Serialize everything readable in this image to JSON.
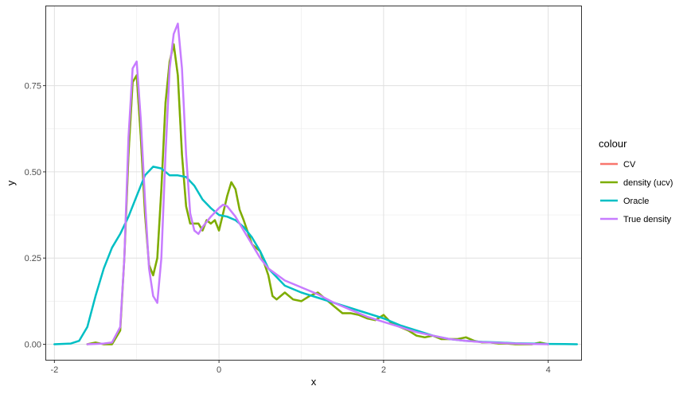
{
  "chart_data": {
    "type": "line",
    "xlabel": "x",
    "ylabel": "y",
    "xlim": [
      -2.1,
      4.4
    ],
    "ylim": [
      -0.045,
      0.98
    ],
    "x_ticks": [
      -2,
      0,
      2,
      4
    ],
    "x_tick_labels": [
      "-2",
      "0",
      "2",
      "4"
    ],
    "y_ticks": [
      0.0,
      0.25,
      0.5,
      0.75
    ],
    "y_tick_labels": [
      "0.00",
      "0.25",
      "0.50",
      "0.75"
    ],
    "grid": true,
    "legend": {
      "title": "colour",
      "placement": "right",
      "entries": [
        {
          "label": "CV",
          "color": "#F8766D"
        },
        {
          "label": "density (ucv)",
          "color": "#7CAE00"
        },
        {
          "label": "Oracle",
          "color": "#00BFC4"
        },
        {
          "label": "True density",
          "color": "#C77CFF"
        }
      ]
    },
    "series": [
      {
        "name": "CV",
        "color": "#F8766D",
        "x": [
          -1.6,
          -1.5,
          -1.4,
          -1.3,
          -1.2,
          -1.15,
          -1.1,
          -1.05,
          -1.0,
          -0.95,
          -0.9,
          -0.85,
          -0.8,
          -0.75,
          -0.7,
          -0.65,
          -0.6,
          -0.55,
          -0.5,
          -0.45,
          -0.4,
          -0.35,
          -0.3,
          -0.25,
          -0.2,
          -0.15,
          -0.1,
          -0.05,
          0.0,
          0.05,
          0.1,
          0.15,
          0.2,
          0.25,
          0.3,
          0.4,
          0.5,
          0.6,
          0.65,
          0.7,
          0.8,
          0.9,
          1.0,
          1.1,
          1.2,
          1.3,
          1.4,
          1.5,
          1.6,
          1.7,
          1.8,
          1.9,
          2.0,
          2.1,
          2.2,
          2.3,
          2.4,
          2.5,
          2.6,
          2.7,
          2.8,
          2.9,
          3.0,
          3.1,
          3.2,
          3.3,
          3.4,
          3.5,
          3.6,
          3.7,
          3.8,
          3.9,
          4.0
        ],
        "values": [
          0.0,
          0.005,
          0.0,
          0.0,
          0.04,
          0.25,
          0.55,
          0.76,
          0.78,
          0.6,
          0.38,
          0.23,
          0.2,
          0.25,
          0.45,
          0.7,
          0.82,
          0.87,
          0.78,
          0.55,
          0.4,
          0.35,
          0.35,
          0.35,
          0.33,
          0.36,
          0.35,
          0.36,
          0.33,
          0.38,
          0.43,
          0.47,
          0.45,
          0.39,
          0.36,
          0.29,
          0.27,
          0.2,
          0.14,
          0.13,
          0.15,
          0.13,
          0.125,
          0.14,
          0.15,
          0.13,
          0.11,
          0.09,
          0.09,
          0.085,
          0.075,
          0.07,
          0.085,
          0.06,
          0.05,
          0.04,
          0.025,
          0.02,
          0.025,
          0.015,
          0.015,
          0.015,
          0.02,
          0.01,
          0.005,
          0.005,
          0.002,
          0.002,
          0.0,
          0.0,
          0.0,
          0.005,
          0.0
        ]
      },
      {
        "name": "density (ucv)",
        "color": "#7CAE00",
        "x": [
          -1.6,
          -1.5,
          -1.4,
          -1.3,
          -1.2,
          -1.15,
          -1.1,
          -1.05,
          -1.0,
          -0.95,
          -0.9,
          -0.85,
          -0.8,
          -0.75,
          -0.7,
          -0.65,
          -0.6,
          -0.55,
          -0.5,
          -0.45,
          -0.4,
          -0.35,
          -0.3,
          -0.25,
          -0.2,
          -0.15,
          -0.1,
          -0.05,
          0.0,
          0.05,
          0.1,
          0.15,
          0.2,
          0.25,
          0.3,
          0.4,
          0.5,
          0.6,
          0.65,
          0.7,
          0.8,
          0.9,
          1.0,
          1.1,
          1.2,
          1.3,
          1.4,
          1.5,
          1.6,
          1.7,
          1.8,
          1.9,
          2.0,
          2.1,
          2.2,
          2.3,
          2.4,
          2.5,
          2.6,
          2.7,
          2.8,
          2.9,
          3.0,
          3.1,
          3.2,
          3.3,
          3.4,
          3.5,
          3.6,
          3.7,
          3.8,
          3.9,
          4.0
        ],
        "values": [
          0.0,
          0.005,
          0.0,
          0.0,
          0.04,
          0.25,
          0.55,
          0.76,
          0.78,
          0.6,
          0.38,
          0.23,
          0.2,
          0.25,
          0.45,
          0.7,
          0.82,
          0.87,
          0.78,
          0.55,
          0.4,
          0.35,
          0.35,
          0.35,
          0.33,
          0.36,
          0.35,
          0.36,
          0.33,
          0.38,
          0.43,
          0.47,
          0.45,
          0.39,
          0.36,
          0.29,
          0.27,
          0.2,
          0.14,
          0.13,
          0.15,
          0.13,
          0.125,
          0.14,
          0.15,
          0.13,
          0.11,
          0.09,
          0.09,
          0.085,
          0.075,
          0.07,
          0.085,
          0.06,
          0.05,
          0.04,
          0.025,
          0.02,
          0.025,
          0.015,
          0.015,
          0.015,
          0.02,
          0.01,
          0.005,
          0.005,
          0.002,
          0.002,
          0.0,
          0.0,
          0.0,
          0.005,
          0.0
        ]
      },
      {
        "name": "Oracle",
        "color": "#00BFC4",
        "x": [
          -2.0,
          -1.8,
          -1.7,
          -1.6,
          -1.5,
          -1.4,
          -1.3,
          -1.2,
          -1.1,
          -1.0,
          -0.9,
          -0.8,
          -0.7,
          -0.6,
          -0.5,
          -0.4,
          -0.3,
          -0.2,
          -0.1,
          0.0,
          0.1,
          0.2,
          0.3,
          0.4,
          0.5,
          0.6,
          0.8,
          1.0,
          1.2,
          1.4,
          1.6,
          1.8,
          2.0,
          2.2,
          2.4,
          2.6,
          2.8,
          3.0,
          3.2,
          3.4,
          3.6,
          3.8,
          4.0,
          4.2,
          4.35
        ],
        "values": [
          0.0,
          0.002,
          0.01,
          0.05,
          0.14,
          0.22,
          0.28,
          0.32,
          0.37,
          0.43,
          0.49,
          0.515,
          0.51,
          0.49,
          0.49,
          0.485,
          0.46,
          0.42,
          0.395,
          0.375,
          0.37,
          0.36,
          0.34,
          0.31,
          0.27,
          0.22,
          0.17,
          0.15,
          0.135,
          0.12,
          0.105,
          0.09,
          0.075,
          0.055,
          0.04,
          0.025,
          0.015,
          0.01,
          0.007,
          0.005,
          0.003,
          0.002,
          0.001,
          0.0005,
          0.0
        ]
      },
      {
        "name": "True density",
        "color": "#C77CFF",
        "x": [
          -1.6,
          -1.4,
          -1.3,
          -1.2,
          -1.15,
          -1.1,
          -1.05,
          -1.0,
          -0.95,
          -0.9,
          -0.85,
          -0.8,
          -0.75,
          -0.7,
          -0.65,
          -0.6,
          -0.55,
          -0.5,
          -0.45,
          -0.4,
          -0.35,
          -0.3,
          -0.25,
          -0.2,
          -0.1,
          0.0,
          0.05,
          0.1,
          0.2,
          0.3,
          0.4,
          0.5,
          0.6,
          0.8,
          1.0,
          1.2,
          1.4,
          1.6,
          1.8,
          2.0,
          2.2,
          2.4,
          2.6,
          2.8,
          3.0,
          3.2,
          3.4,
          3.6,
          3.8,
          4.0
        ],
        "values": [
          0.0,
          0.002,
          0.005,
          0.05,
          0.25,
          0.6,
          0.8,
          0.82,
          0.65,
          0.42,
          0.22,
          0.14,
          0.12,
          0.25,
          0.55,
          0.8,
          0.9,
          0.93,
          0.8,
          0.55,
          0.38,
          0.33,
          0.32,
          0.34,
          0.37,
          0.395,
          0.405,
          0.4,
          0.37,
          0.33,
          0.29,
          0.25,
          0.22,
          0.185,
          0.165,
          0.145,
          0.12,
          0.1,
          0.08,
          0.065,
          0.05,
          0.035,
          0.025,
          0.015,
          0.01,
          0.006,
          0.004,
          0.002,
          0.001,
          0.0
        ]
      }
    ]
  }
}
